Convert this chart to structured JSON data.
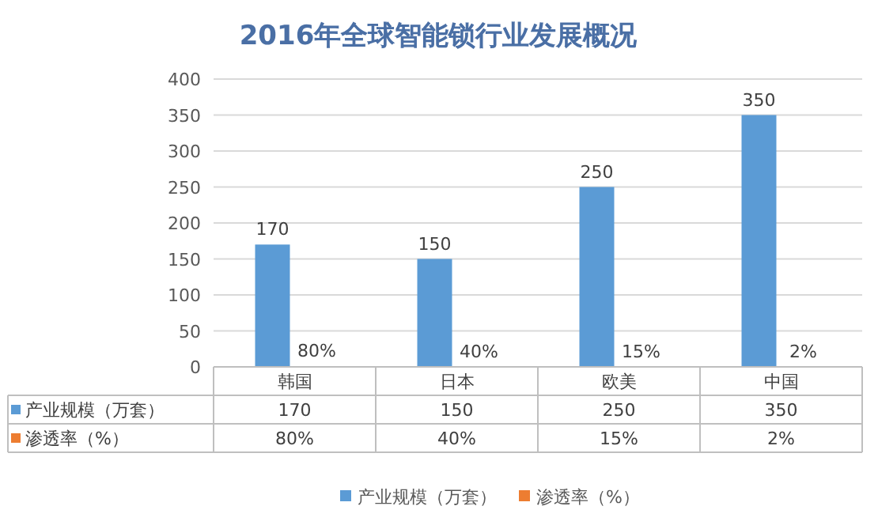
{
  "chart_data": {
    "type": "bar",
    "title": "2016年全球智能锁行业发展概况",
    "categories": [
      "韩国",
      "日本",
      "欧美",
      "中国"
    ],
    "series": [
      {
        "name": "产业规模（万套）",
        "color": "#5b9bd5",
        "values": [
          170,
          150,
          250,
          350
        ],
        "value_labels": [
          "170",
          "150",
          "250",
          "350"
        ]
      },
      {
        "name": "渗透率（%）",
        "color": "#ed7d31",
        "values": [
          0.8,
          0.4,
          0.15,
          0.02
        ],
        "value_labels": [
          "80%",
          "40%",
          "15%",
          "2%"
        ]
      }
    ],
    "ylim": [
      0,
      400
    ],
    "yticks": [
      0,
      50,
      100,
      150,
      200,
      250,
      300,
      350,
      400
    ],
    "grid": "y",
    "legend": "bottom"
  }
}
